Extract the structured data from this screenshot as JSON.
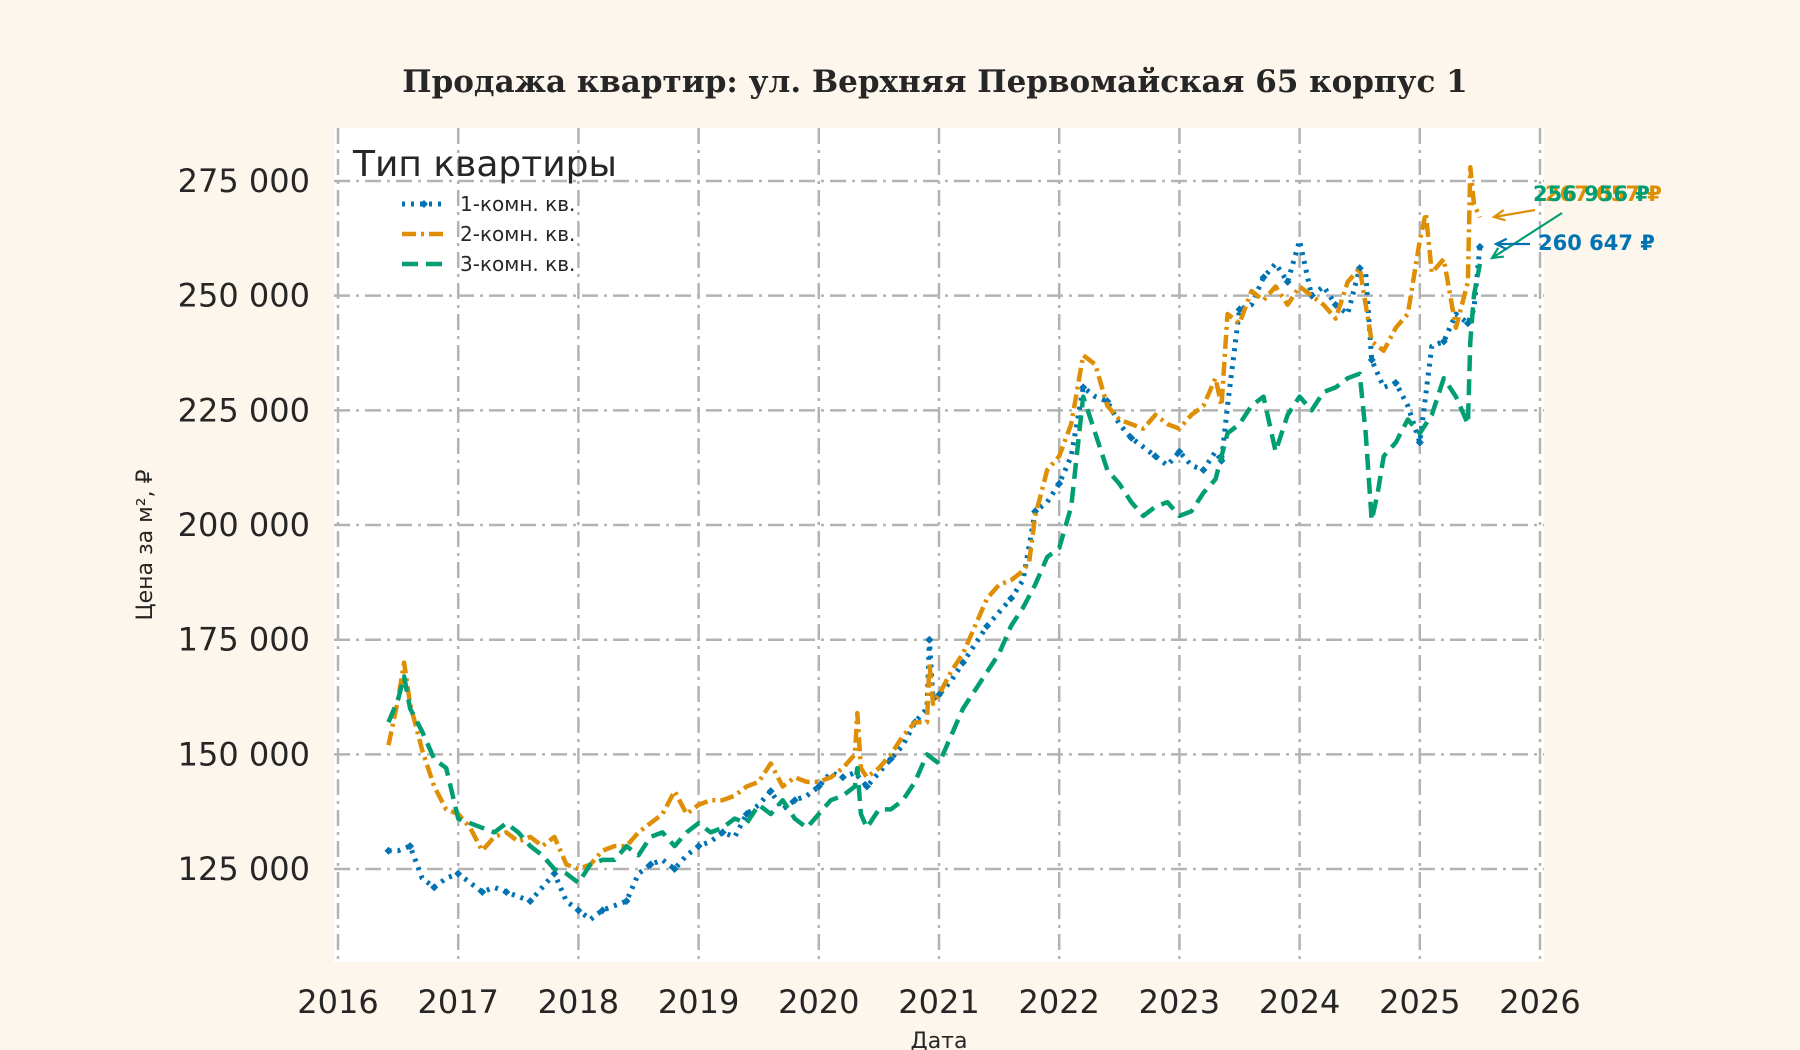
{
  "chart_data": {
    "type": "line",
    "title": "Продажа квартир: ул. Верхняя Первомайская 65 корпус 1",
    "xlabel": "Дата",
    "ylabel": "Цена за м², ₽",
    "xlim": [
      2016,
      2026
    ],
    "ylim": [
      105000,
      286000
    ],
    "x_ticks": [
      "2016",
      "2017",
      "2018",
      "2019",
      "2020",
      "2021",
      "2022",
      "2023",
      "2024",
      "2025",
      "2026"
    ],
    "y_ticks": [
      "125 000",
      "150 000",
      "175 000",
      "200 000",
      "225 000",
      "250 000",
      "275 000"
    ],
    "y_tick_values": [
      125000,
      150000,
      175000,
      200000,
      225000,
      250000,
      275000
    ],
    "grid": true,
    "legend": {
      "title": "Тип квартиры",
      "position": "upper left"
    },
    "series": [
      {
        "name": "1-комн. кв.",
        "color": "#0173b2",
        "style": "dotted-diamond",
        "x": [
          2016.42,
          2016.5,
          2016.6,
          2016.7,
          2016.8,
          2016.9,
          2017.0,
          2017.1,
          2017.2,
          2017.3,
          2017.4,
          2017.5,
          2017.6,
          2017.7,
          2017.8,
          2017.9,
          2018.0,
          2018.1,
          2018.2,
          2018.3,
          2018.4,
          2018.5,
          2018.6,
          2018.7,
          2018.8,
          2018.9,
          2019.0,
          2019.1,
          2019.2,
          2019.3,
          2019.4,
          2019.5,
          2019.6,
          2019.7,
          2019.8,
          2019.9,
          2020.0,
          2020.1,
          2020.2,
          2020.3,
          2020.4,
          2020.5,
          2020.6,
          2020.7,
          2020.8,
          2020.9,
          2020.92,
          2020.95,
          2021.0,
          2021.1,
          2021.2,
          2021.3,
          2021.4,
          2021.5,
          2021.6,
          2021.7,
          2021.8,
          2021.9,
          2022.0,
          2022.1,
          2022.2,
          2022.3,
          2022.4,
          2022.5,
          2022.6,
          2022.7,
          2022.8,
          2022.9,
          2023.0,
          2023.1,
          2023.2,
          2023.3,
          2023.35,
          2023.4,
          2023.5,
          2023.6,
          2023.7,
          2023.8,
          2023.9,
          2024.0,
          2024.1,
          2024.2,
          2024.3,
          2024.4,
          2024.5,
          2024.55,
          2024.6,
          2024.7,
          2024.8,
          2024.9,
          2025.0,
          2025.1,
          2025.2,
          2025.3,
          2025.4,
          2025.45,
          2025.5
        ],
        "y": [
          129000,
          129000,
          130000,
          123000,
          121000,
          123000,
          124000,
          122000,
          120000,
          121000,
          120000,
          119000,
          118000,
          121000,
          124000,
          118000,
          116000,
          114000,
          116000,
          117000,
          118000,
          124000,
          126000,
          127000,
          125000,
          128000,
          130000,
          131000,
          133000,
          132000,
          137000,
          139000,
          142000,
          138000,
          140000,
          141000,
          143000,
          146000,
          145000,
          146000,
          143000,
          146000,
          149000,
          152000,
          157000,
          160000,
          175000,
          162000,
          163000,
          166000,
          170000,
          174000,
          178000,
          181000,
          184000,
          188000,
          203000,
          205000,
          209000,
          215000,
          230000,
          228000,
          227000,
          222000,
          219000,
          217000,
          215000,
          213000,
          216000,
          213000,
          212000,
          216000,
          214000,
          226000,
          247000,
          248000,
          254000,
          257000,
          253000,
          262000,
          250000,
          252000,
          248000,
          246000,
          256000,
          255000,
          236000,
          230000,
          231000,
          226000,
          218000,
          239000,
          240000,
          246000,
          244000,
          247000,
          260647
        ]
      },
      {
        "name": "2-комн. кв.",
        "color": "#de8f05",
        "style": "dashdot",
        "x": [
          2016.42,
          2016.5,
          2016.55,
          2016.6,
          2016.7,
          2016.8,
          2016.9,
          2017.0,
          2017.1,
          2017.2,
          2017.3,
          2017.4,
          2017.5,
          2017.6,
          2017.7,
          2017.8,
          2017.9,
          2018.0,
          2018.1,
          2018.2,
          2018.3,
          2018.4,
          2018.5,
          2018.6,
          2018.7,
          2018.8,
          2018.9,
          2019.0,
          2019.1,
          2019.2,
          2019.3,
          2019.4,
          2019.5,
          2019.6,
          2019.7,
          2019.8,
          2019.9,
          2020.0,
          2020.1,
          2020.2,
          2020.3,
          2020.32,
          2020.35,
          2020.4,
          2020.5,
          2020.6,
          2020.7,
          2020.8,
          2020.9,
          2020.92,
          2020.95,
          2021.0,
          2021.1,
          2021.2,
          2021.3,
          2021.4,
          2021.5,
          2021.6,
          2021.7,
          2021.75,
          2021.8,
          2021.9,
          2022.0,
          2022.1,
          2022.2,
          2022.3,
          2022.4,
          2022.5,
          2022.6,
          2022.7,
          2022.8,
          2022.9,
          2023.0,
          2023.1,
          2023.2,
          2023.3,
          2023.35,
          2023.4,
          2023.5,
          2023.6,
          2023.7,
          2023.8,
          2023.9,
          2024.0,
          2024.1,
          2024.2,
          2024.3,
          2024.4,
          2024.5,
          2024.55,
          2024.6,
          2024.7,
          2024.8,
          2024.9,
          2025.0,
          2025.05,
          2025.1,
          2025.2,
          2025.3,
          2025.4,
          2025.42,
          2025.45,
          2025.5
        ],
        "y": [
          152000,
          162000,
          170000,
          161000,
          151000,
          143000,
          138000,
          137000,
          134000,
          129000,
          132000,
          133000,
          131000,
          132000,
          130000,
          132000,
          126000,
          125000,
          126000,
          129000,
          130000,
          130000,
          133000,
          135000,
          137000,
          142000,
          137000,
          139000,
          140000,
          140000,
          141000,
          143000,
          144000,
          148000,
          143000,
          145000,
          144000,
          144000,
          145000,
          147000,
          150000,
          159000,
          147000,
          145000,
          147000,
          150000,
          154000,
          157000,
          157000,
          170000,
          161000,
          163000,
          168000,
          172000,
          178000,
          184000,
          187000,
          188000,
          190000,
          192000,
          202000,
          212000,
          215000,
          222000,
          237000,
          235000,
          226000,
          223000,
          222000,
          221000,
          224000,
          222000,
          221000,
          224000,
          226000,
          232000,
          226000,
          246000,
          244000,
          251000,
          249000,
          252000,
          248000,
          252000,
          250000,
          248000,
          245000,
          253000,
          256000,
          248000,
          240000,
          238000,
          243000,
          246000,
          262000,
          268000,
          255000,
          258000,
          243000,
          253000,
          278000,
          270000,
          267057
        ]
      },
      {
        "name": "3-комн. кв.",
        "color": "#029e73",
        "style": "dashed",
        "x": [
          2016.42,
          2016.5,
          2016.55,
          2016.6,
          2016.7,
          2016.8,
          2016.9,
          2017.0,
          2017.1,
          2017.2,
          2017.3,
          2017.4,
          2017.5,
          2017.6,
          2017.7,
          2017.8,
          2017.9,
          2018.0,
          2018.1,
          2018.2,
          2018.3,
          2018.4,
          2018.5,
          2018.6,
          2018.7,
          2018.8,
          2018.9,
          2019.0,
          2019.1,
          2019.2,
          2019.3,
          2019.4,
          2019.5,
          2019.6,
          2019.7,
          2019.8,
          2019.9,
          2020.0,
          2020.1,
          2020.2,
          2020.3,
          2020.32,
          2020.35,
          2020.4,
          2020.5,
          2020.6,
          2020.7,
          2020.8,
          2020.9,
          2021.0,
          2021.1,
          2021.2,
          2021.3,
          2021.4,
          2021.5,
          2021.6,
          2021.7,
          2021.8,
          2021.9,
          2022.0,
          2022.1,
          2022.2,
          2022.3,
          2022.4,
          2022.5,
          2022.6,
          2022.7,
          2022.8,
          2022.9,
          2023.0,
          2023.1,
          2023.2,
          2023.3,
          2023.4,
          2023.5,
          2023.6,
          2023.7,
          2023.8,
          2023.9,
          2024.0,
          2024.1,
          2024.2,
          2024.3,
          2024.4,
          2024.5,
          2024.55,
          2024.6,
          2024.65,
          2024.7,
          2024.8,
          2024.9,
          2025.0,
          2025.1,
          2025.2,
          2025.3,
          2025.4,
          2025.42,
          2025.45,
          2025.5
        ],
        "y": [
          157000,
          162000,
          167000,
          160000,
          155000,
          149000,
          147000,
          136000,
          135000,
          134000,
          133000,
          135000,
          133000,
          130000,
          128000,
          125000,
          124000,
          122000,
          126000,
          127000,
          127000,
          130000,
          128000,
          132000,
          133000,
          130000,
          133000,
          135000,
          133000,
          134000,
          136000,
          135000,
          139000,
          137000,
          140000,
          136000,
          134000,
          137000,
          140000,
          141000,
          143000,
          147000,
          137000,
          134000,
          138000,
          138000,
          140000,
          144000,
          150000,
          148000,
          154000,
          160000,
          164000,
          168000,
          172000,
          178000,
          182000,
          187000,
          193000,
          195000,
          204000,
          228000,
          220000,
          212000,
          209000,
          205000,
          202000,
          204000,
          205000,
          202000,
          203000,
          207000,
          210000,
          220000,
          222000,
          226000,
          228000,
          216000,
          224000,
          228000,
          225000,
          229000,
          230000,
          232000,
          233000,
          220000,
          201000,
          207000,
          215000,
          218000,
          223000,
          220000,
          224000,
          232000,
          228000,
          222000,
          240000,
          250000,
          256956
        ]
      }
    ],
    "annotations": [
      {
        "text": "267 057 ₽",
        "series": "2-комн. кв.",
        "color": "#de8f05"
      },
      {
        "text": "256 956 ₽",
        "series": "3-комн. кв.",
        "color": "#029e73"
      },
      {
        "text": "260 647 ₽",
        "series": "1-комн. кв.",
        "color": "#0173b2"
      }
    ]
  }
}
